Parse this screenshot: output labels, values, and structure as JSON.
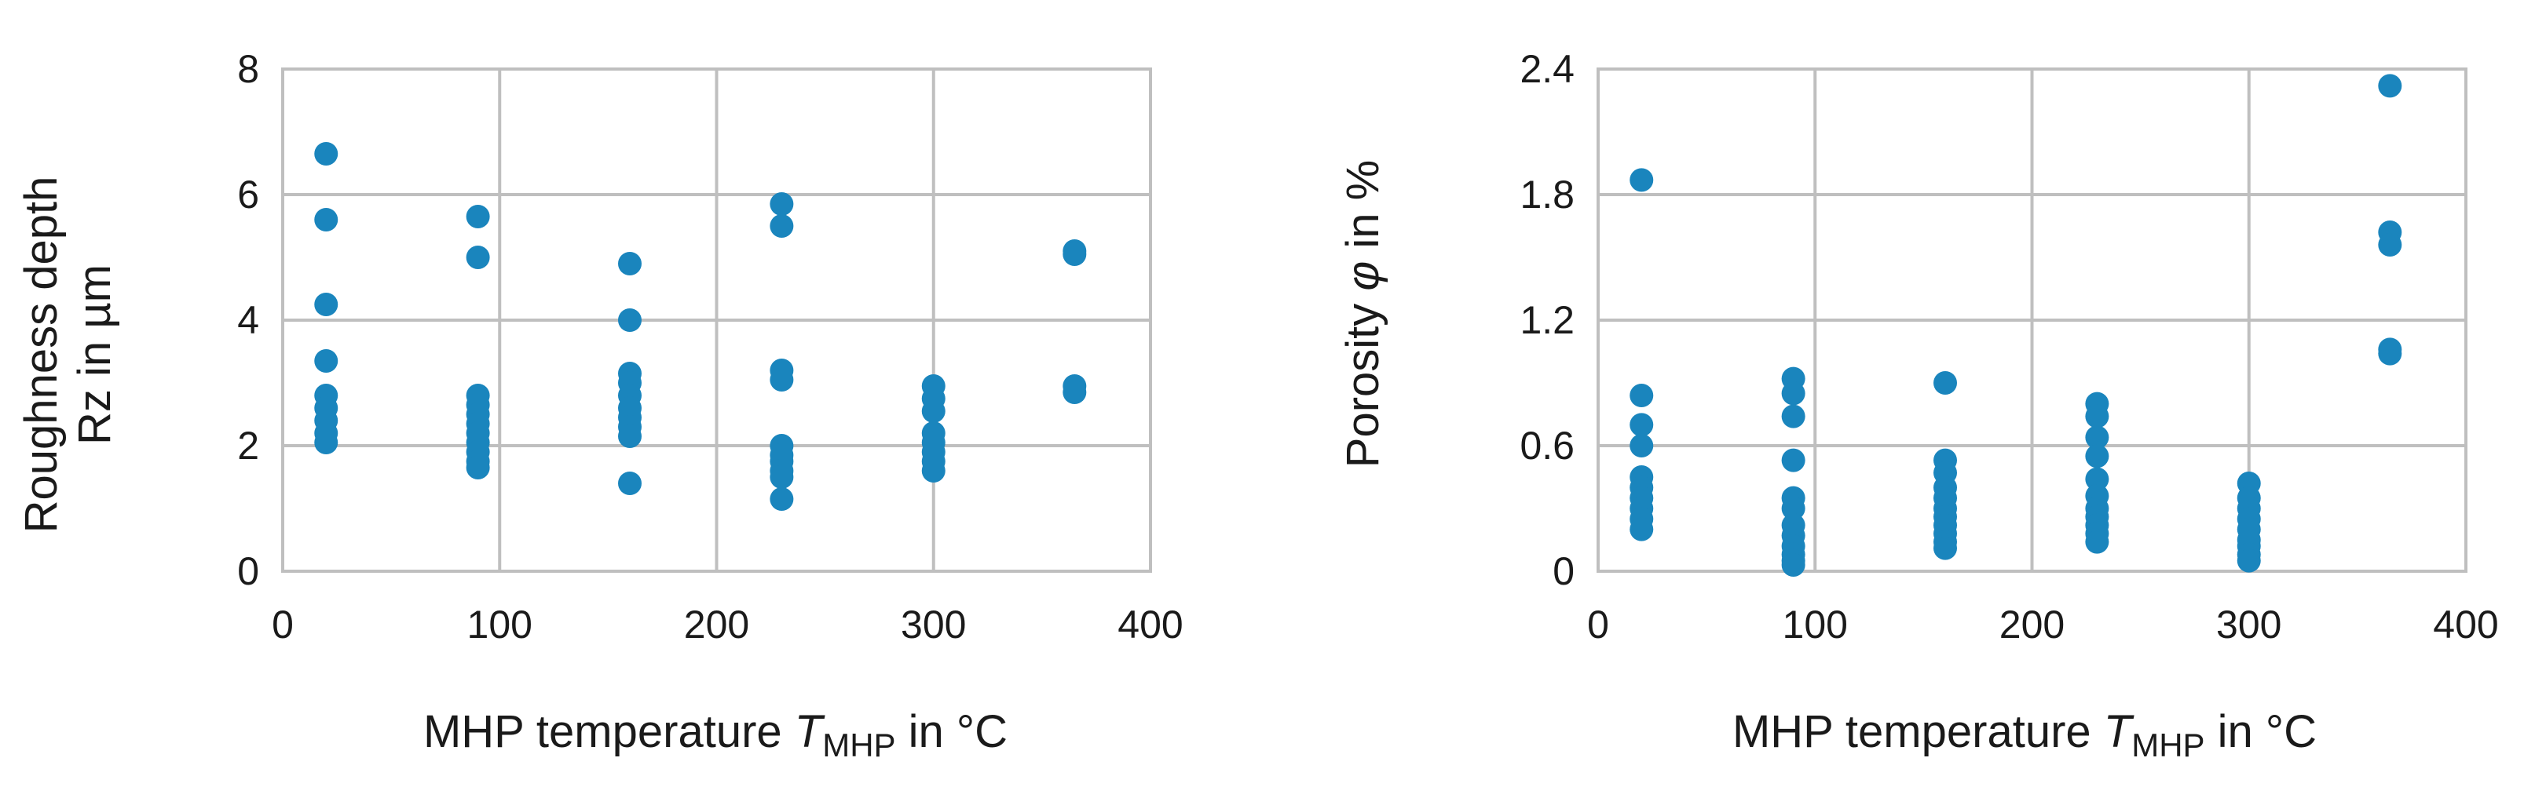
{
  "chart_data": [
    {
      "type": "scatter",
      "title": "",
      "xlabel": {
        "prefix": "MHP temperature ",
        "symbol": "T",
        "subscript": "MHP",
        "suffix": " in °C"
      },
      "ylabel": {
        "line1": "Roughness depth",
        "line2": "Rz in µm"
      },
      "xlim": [
        0,
        400
      ],
      "ylim": [
        0,
        8
      ],
      "xticks": [
        "0",
        "100",
        "200",
        "300",
        "400"
      ],
      "yticks": [
        "0",
        "2",
        "4",
        "6",
        "8"
      ],
      "grid": true,
      "color": "#1a85bd",
      "points": [
        [
          20,
          6.65
        ],
        [
          20,
          5.6
        ],
        [
          20,
          4.25
        ],
        [
          20,
          3.35
        ],
        [
          20,
          2.8
        ],
        [
          20,
          2.6
        ],
        [
          20,
          2.4
        ],
        [
          20,
          2.2
        ],
        [
          20,
          2.05
        ],
        [
          90,
          5.65
        ],
        [
          90,
          5.0
        ],
        [
          90,
          2.8
        ],
        [
          90,
          2.65
        ],
        [
          90,
          2.5
        ],
        [
          90,
          2.35
        ],
        [
          90,
          2.2
        ],
        [
          90,
          2.05
        ],
        [
          90,
          1.9
        ],
        [
          90,
          1.75
        ],
        [
          90,
          1.65
        ],
        [
          160,
          4.9
        ],
        [
          160,
          4.0
        ],
        [
          160,
          3.15
        ],
        [
          160,
          3.0
        ],
        [
          160,
          2.8
        ],
        [
          160,
          2.6
        ],
        [
          160,
          2.45
        ],
        [
          160,
          2.3
        ],
        [
          160,
          2.15
        ],
        [
          160,
          1.4
        ],
        [
          230,
          5.85
        ],
        [
          230,
          5.5
        ],
        [
          230,
          3.2
        ],
        [
          230,
          3.05
        ],
        [
          230,
          2.0
        ],
        [
          230,
          1.85
        ],
        [
          230,
          1.75
        ],
        [
          230,
          1.6
        ],
        [
          230,
          1.5
        ],
        [
          230,
          1.15
        ],
        [
          300,
          2.95
        ],
        [
          300,
          2.75
        ],
        [
          300,
          2.55
        ],
        [
          300,
          2.2
        ],
        [
          300,
          2.05
        ],
        [
          300,
          1.9
        ],
        [
          300,
          1.75
        ],
        [
          300,
          1.6
        ],
        [
          365,
          5.1
        ],
        [
          365,
          5.05
        ],
        [
          365,
          2.95
        ],
        [
          365,
          2.85
        ]
      ]
    },
    {
      "type": "scatter",
      "title": "",
      "xlabel": {
        "prefix": "MHP temperature ",
        "symbol": "T",
        "subscript": "MHP",
        "suffix": " in °C"
      },
      "ylabel": {
        "prefix": "Porosity ",
        "symbol": "φ",
        "suffix": " in %"
      },
      "xlim": [
        0,
        400
      ],
      "ylim": [
        0,
        2.4
      ],
      "xticks": [
        "0",
        "100",
        "200",
        "300",
        "400"
      ],
      "yticks": [
        "0",
        "0.6",
        "1.2",
        "1.8",
        "2.4"
      ],
      "grid": true,
      "color": "#1a85bd",
      "points": [
        [
          20,
          1.87
        ],
        [
          20,
          0.84
        ],
        [
          20,
          0.7
        ],
        [
          20,
          0.6
        ],
        [
          20,
          0.45
        ],
        [
          20,
          0.4
        ],
        [
          20,
          0.35
        ],
        [
          20,
          0.3
        ],
        [
          20,
          0.25
        ],
        [
          20,
          0.2
        ],
        [
          90,
          0.92
        ],
        [
          90,
          0.85
        ],
        [
          90,
          0.74
        ],
        [
          90,
          0.53
        ],
        [
          90,
          0.35
        ],
        [
          90,
          0.3
        ],
        [
          90,
          0.22
        ],
        [
          90,
          0.17
        ],
        [
          90,
          0.12
        ],
        [
          90,
          0.08
        ],
        [
          90,
          0.05
        ],
        [
          90,
          0.03
        ],
        [
          160,
          0.9
        ],
        [
          160,
          0.53
        ],
        [
          160,
          0.47
        ],
        [
          160,
          0.4
        ],
        [
          160,
          0.35
        ],
        [
          160,
          0.3
        ],
        [
          160,
          0.26
        ],
        [
          160,
          0.22
        ],
        [
          160,
          0.18
        ],
        [
          160,
          0.14
        ],
        [
          160,
          0.11
        ],
        [
          230,
          0.8
        ],
        [
          230,
          0.74
        ],
        [
          230,
          0.64
        ],
        [
          230,
          0.55
        ],
        [
          230,
          0.44
        ],
        [
          230,
          0.36
        ],
        [
          230,
          0.3
        ],
        [
          230,
          0.26
        ],
        [
          230,
          0.22
        ],
        [
          230,
          0.18
        ],
        [
          230,
          0.14
        ],
        [
          300,
          0.42
        ],
        [
          300,
          0.35
        ],
        [
          300,
          0.3
        ],
        [
          300,
          0.25
        ],
        [
          300,
          0.2
        ],
        [
          300,
          0.15
        ],
        [
          300,
          0.12
        ],
        [
          300,
          0.08
        ],
        [
          300,
          0.05
        ],
        [
          365,
          2.32
        ],
        [
          365,
          1.62
        ],
        [
          365,
          1.56
        ],
        [
          365,
          1.06
        ],
        [
          365,
          1.04
        ]
      ]
    }
  ]
}
